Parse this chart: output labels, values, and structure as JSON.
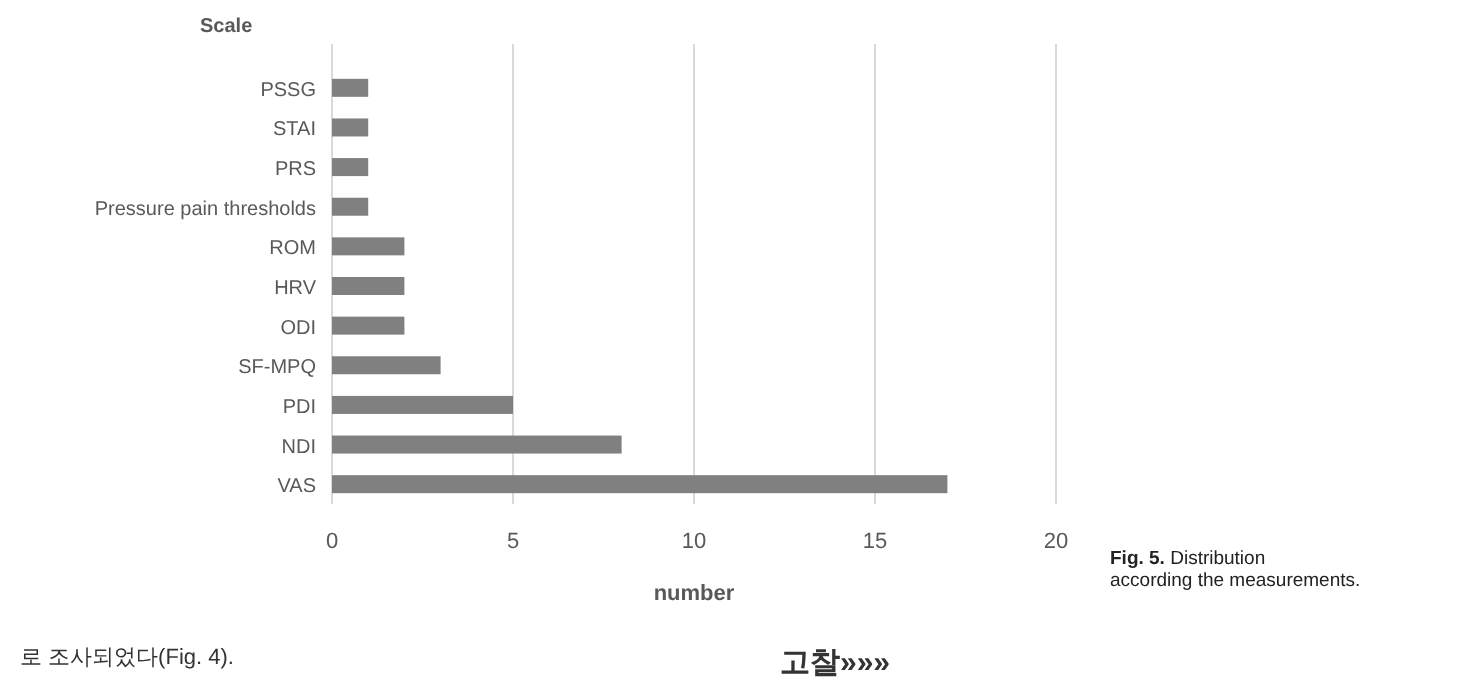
{
  "chart_data": {
    "type": "bar",
    "orientation": "horizontal",
    "ylabel": "Scale",
    "xlabel": "number",
    "categories": [
      "PSSG",
      "STAI",
      "PRS",
      "Pressure pain thresholds",
      "ROM",
      "HRV",
      "ODI",
      "SF-MPQ",
      "PDI",
      "NDI",
      "VAS"
    ],
    "values": [
      1,
      1,
      1,
      1,
      2,
      2,
      2,
      3,
      5,
      8,
      17
    ],
    "color": "#808080",
    "xlim": [
      0,
      20
    ],
    "xticks": [
      0,
      5,
      10,
      15,
      20
    ],
    "grid": "x",
    "annotations": [
      "**Fig. 5.** Distribution according the measurements.",
      "로 조사되었다(Fig. 4).",
      "고찰»»»"
    ]
  }
}
